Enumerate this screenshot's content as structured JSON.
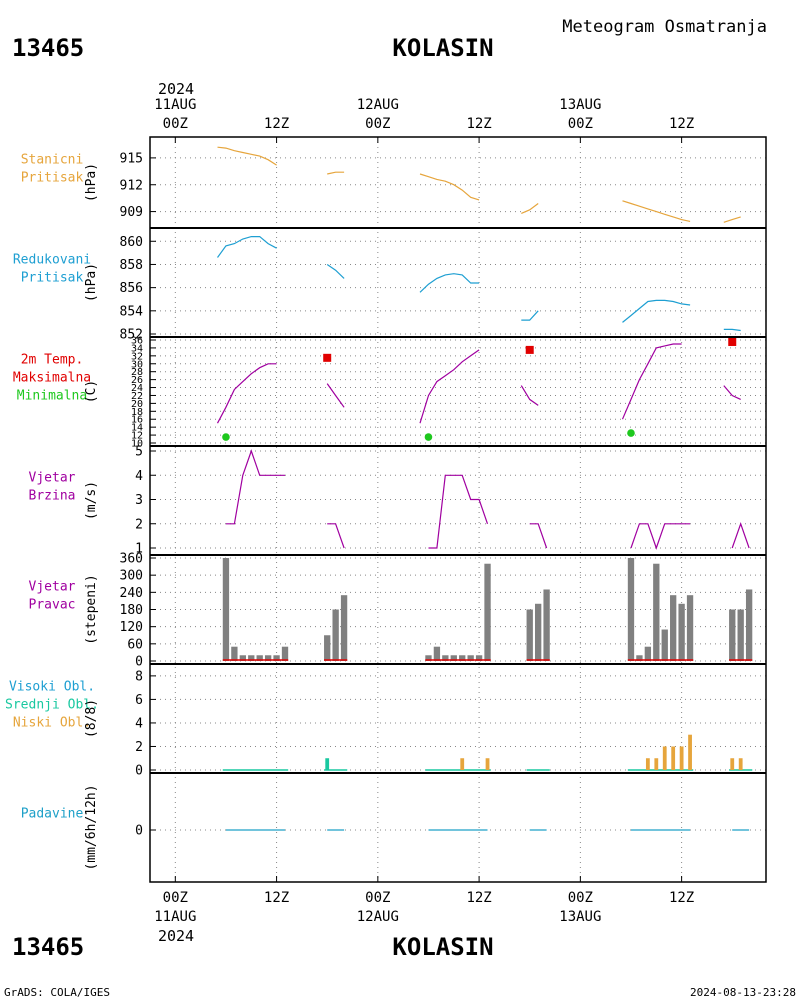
{
  "header": {
    "station_id": "13465",
    "station_name": "KOLASIN",
    "subtitle": "Meteogram Osmatranja",
    "year": "2024",
    "footer_left": "GrADS: COLA/IGES",
    "footer_right": "2024-08-13-23:28"
  },
  "time_axis": {
    "ticks": [
      {
        "hour": 0,
        "label": "00Z",
        "date": "11AUG"
      },
      {
        "hour": 12,
        "label": "12Z",
        "date": ""
      },
      {
        "hour": 24,
        "label": "00Z",
        "date": "12AUG"
      },
      {
        "hour": 36,
        "label": "12Z",
        "date": ""
      },
      {
        "hour": 48,
        "label": "00Z",
        "date": "13AUG"
      },
      {
        "hour": 60,
        "label": "12Z",
        "date": ""
      }
    ],
    "range_hours": [
      -3,
      70
    ]
  },
  "colors": {
    "pressure": "#e6a53c",
    "reduced": "#1e9fd2",
    "temperature": "#a000a0",
    "tmax": "#e10000",
    "tmin": "#1ec81e",
    "wind": "#a000a0",
    "direction_bar": "#808080",
    "direction_base": "#e10000",
    "cloud_high": "#1e9fd2",
    "cloud_mid": "#19c8a0",
    "cloud_low": "#e6a53c",
    "precip": "#1ea0c8"
  },
  "panels": [
    {
      "key": "pressure",
      "labels": [
        {
          "text": "Stanicni",
          "color": "#e6a53c"
        },
        {
          "text": "Pritisak",
          "color": "#e6a53c"
        }
      ],
      "unit": "(hPa)",
      "ticks": [
        "909",
        "912",
        "915"
      ]
    },
    {
      "key": "reduced",
      "labels": [
        {
          "text": "Redukovani",
          "color": "#1e9fd2"
        },
        {
          "text": "Pritisak",
          "color": "#1e9fd2"
        }
      ],
      "unit": "(hPa)",
      "ticks": [
        "852",
        "854",
        "856",
        "858",
        "860"
      ]
    },
    {
      "key": "temperature",
      "labels": [
        {
          "text": "2m Temp.",
          "color": "#e10000"
        },
        {
          "text": "Maksimalna",
          "color": "#e10000"
        },
        {
          "text": "Minimalna",
          "color": "#1ec81e"
        }
      ],
      "unit": "(C)",
      "ticks": [
        "10",
        "12",
        "14",
        "16",
        "18",
        "20",
        "22",
        "24",
        "26",
        "28",
        "30",
        "32",
        "34",
        "36"
      ]
    },
    {
      "key": "wind",
      "labels": [
        {
          "text": "Vjetar",
          "color": "#a000a0"
        },
        {
          "text": "Brzina",
          "color": "#a000a0"
        }
      ],
      "unit": "(m/s)",
      "ticks": [
        "1",
        "2",
        "3",
        "4",
        "5"
      ]
    },
    {
      "key": "direction",
      "labels": [
        {
          "text": "Vjetar",
          "color": "#a000a0"
        },
        {
          "text": "Pravac",
          "color": "#a000a0"
        }
      ],
      "unit": "(stepeni)",
      "ticks": [
        "0",
        "60",
        "120",
        "180",
        "240",
        "300",
        "360"
      ]
    },
    {
      "key": "clouds",
      "labels": [
        {
          "text": "Visoki Obl.",
          "color": "#1e9fd2"
        },
        {
          "text": "Srednji Obl.",
          "color": "#19c8a0"
        },
        {
          "text": "Niski Obl.",
          "color": "#e6a53c"
        }
      ],
      "unit": "(8/8)",
      "ticks": [
        "0",
        "2",
        "4",
        "6",
        "8"
      ]
    },
    {
      "key": "precip",
      "labels": [
        {
          "text": "Padavine",
          "color": "#1ea0c8"
        }
      ],
      "unit": "(mm/6h/12h)",
      "ticks": [
        "0"
      ]
    }
  ],
  "chart_data": [
    {
      "type": "line",
      "title": "Stanicni Pritisak",
      "ylabel": "(hPa)",
      "ylim": [
        907.5,
        917
      ],
      "series": [
        {
          "segments": [
            {
              "x": [
                5,
                6,
                7,
                8,
                9,
                10,
                11,
                12
              ],
              "y": [
                916.2,
                916.1,
                915.8,
                915.6,
                915.4,
                915.2,
                914.8,
                914.2
              ]
            },
            {
              "x": [
                18,
                19,
                20
              ],
              "y": [
                913.2,
                913.4,
                913.4
              ]
            },
            {
              "x": [
                29,
                30,
                31,
                32,
                33,
                34,
                35,
                36
              ],
              "y": [
                913.2,
                912.9,
                912.6,
                912.4,
                912.0,
                911.4,
                910.6,
                910.3
              ]
            },
            {
              "x": [
                41,
                42,
                43
              ],
              "y": [
                908.8,
                909.2,
                909.9
              ]
            },
            {
              "x": [
                53,
                54,
                55,
                56,
                57,
                58,
                59,
                60,
                61
              ],
              "y": [
                910.2,
                909.9,
                909.6,
                909.3,
                909.0,
                908.7,
                908.4,
                908.1,
                907.9
              ]
            },
            {
              "x": [
                65,
                66,
                67
              ],
              "y": [
                907.8,
                908.1,
                908.4
              ]
            }
          ]
        }
      ]
    },
    {
      "type": "line",
      "title": "Redukovani Pritisak",
      "ylabel": "(hPa)",
      "ylim": [
        852,
        860.8
      ],
      "series": [
        {
          "segments": [
            {
              "x": [
                5,
                6,
                7,
                8,
                9,
                10,
                11,
                12
              ],
              "y": [
                858.6,
                859.6,
                859.8,
                860.2,
                860.4,
                860.4,
                859.8,
                859.4
              ]
            },
            {
              "x": [
                18,
                19,
                20
              ],
              "y": [
                858.0,
                857.5,
                856.8
              ]
            },
            {
              "x": [
                29,
                30,
                31,
                32,
                33,
                34,
                35,
                36
              ],
              "y": [
                855.6,
                856.3,
                856.8,
                857.1,
                857.2,
                857.1,
                856.4,
                856.4
              ]
            },
            {
              "x": [
                41,
                42,
                43
              ],
              "y": [
                853.2,
                853.2,
                854.0
              ]
            },
            {
              "x": [
                53,
                54,
                55,
                56,
                57,
                58,
                59,
                60,
                61
              ],
              "y": [
                853.0,
                853.6,
                854.2,
                854.8,
                854.9,
                854.9,
                854.8,
                854.6,
                854.5
              ]
            },
            {
              "x": [
                65,
                66,
                67
              ],
              "y": [
                852.4,
                852.4,
                852.3
              ]
            }
          ]
        }
      ]
    },
    {
      "type": "line",
      "title": "2m Temp. Maksimalna Minimalna",
      "ylabel": "(C)",
      "ylim": [
        10,
        36
      ],
      "series": [
        {
          "name": "2m Temp.",
          "segments": [
            {
              "x": [
                5,
                6,
                7,
                8,
                9,
                10,
                11,
                12
              ],
              "y": [
                15.0,
                19.0,
                23.5,
                25.5,
                27.5,
                29.0,
                30.0,
                30.0
              ]
            },
            {
              "x": [
                18,
                19,
                20
              ],
              "y": [
                25.0,
                22.0,
                19.0
              ]
            },
            {
              "x": [
                29,
                30,
                31,
                32,
                33,
                34,
                35,
                36
              ],
              "y": [
                15.0,
                22.0,
                25.5,
                27.0,
                28.5,
                30.5,
                32.0,
                33.5
              ]
            },
            {
              "x": [
                41,
                42,
                43
              ],
              "y": [
                24.5,
                21.0,
                19.5
              ]
            },
            {
              "x": [
                53,
                54,
                55,
                56,
                57,
                58,
                59,
                60
              ],
              "y": [
                16.0,
                21.0,
                26.0,
                30.0,
                34.0,
                34.5,
                35.0,
                35.0
              ]
            },
            {
              "x": [
                65,
                66,
                67
              ],
              "y": [
                24.5,
                22.0,
                21.0
              ]
            }
          ]
        },
        {
          "name": "Maksimalna",
          "points": [
            {
              "x": 18,
              "y": 31.5
            },
            {
              "x": 42,
              "y": 33.5
            },
            {
              "x": 66,
              "y": 35.5
            }
          ]
        },
        {
          "name": "Minimalna",
          "points": [
            {
              "x": 6,
              "y": 11.5
            },
            {
              "x": 30,
              "y": 11.5
            },
            {
              "x": 54,
              "y": 12.5
            }
          ]
        }
      ]
    },
    {
      "type": "line",
      "title": "Vjetar Brzina",
      "ylabel": "(m/s)",
      "ylim": [
        1,
        5
      ],
      "series": [
        {
          "segments": [
            {
              "x": [
                6,
                7,
                8,
                9,
                10,
                11,
                12,
                13
              ],
              "y": [
                2,
                2,
                4,
                5,
                4,
                4,
                4,
                4
              ]
            },
            {
              "x": [
                18,
                19,
                20
              ],
              "y": [
                2,
                2,
                1
              ]
            },
            {
              "x": [
                30,
                31,
                32,
                33,
                34,
                35,
                36,
                37
              ],
              "y": [
                1,
                1,
                4,
                4,
                4,
                3,
                3,
                2
              ]
            },
            {
              "x": [
                42,
                43,
                44
              ],
              "y": [
                2,
                2,
                1
              ]
            },
            {
              "x": [
                54,
                55,
                56,
                57,
                58,
                59,
                60,
                61
              ],
              "y": [
                1,
                2,
                2,
                1,
                2,
                2,
                2,
                2
              ]
            },
            {
              "x": [
                66,
                67,
                68
              ],
              "y": [
                1,
                2,
                1
              ]
            }
          ]
        }
      ]
    },
    {
      "type": "bar",
      "title": "Vjetar Pravac",
      "ylabel": "(stepeni)",
      "ylim": [
        0,
        360
      ],
      "x": [
        6,
        7,
        8,
        9,
        10,
        11,
        12,
        13,
        18,
        19,
        20,
        30,
        31,
        32,
        33,
        34,
        35,
        36,
        37,
        42,
        43,
        44,
        54,
        55,
        56,
        57,
        58,
        59,
        60,
        61,
        66,
        67,
        68
      ],
      "values": [
        360,
        50,
        20,
        20,
        20,
        20,
        20,
        50,
        90,
        180,
        230,
        20,
        50,
        20,
        20,
        20,
        20,
        20,
        340,
        180,
        200,
        250,
        360,
        20,
        50,
        340,
        110,
        230,
        200,
        230,
        180,
        180,
        250
      ]
    },
    {
      "type": "bar",
      "title": "Visoki Obl. Srednji Obl. Niski Obl.",
      "ylabel": "(8/8)",
      "ylim": [
        0,
        8.5
      ],
      "series": [
        {
          "name": "Srednji Obl.",
          "x": [
            18
          ],
          "values": [
            1
          ]
        },
        {
          "name": "Niski Obl.",
          "x": [
            34,
            37,
            56,
            57,
            58,
            59,
            60,
            61,
            66,
            67
          ],
          "values": [
            1,
            1,
            1,
            1,
            2,
            2,
            2,
            3,
            1,
            1
          ]
        }
      ]
    },
    {
      "type": "line",
      "title": "Padavine",
      "ylabel": "(mm/6h/12h)",
      "ylim": [
        -1,
        1
      ],
      "series": [
        {
          "segments": [
            {
              "x": [
                6,
                13
              ],
              "y": [
                0,
                0
              ]
            },
            {
              "x": [
                18,
                20
              ],
              "y": [
                0,
                0
              ]
            },
            {
              "x": [
                30,
                37
              ],
              "y": [
                0,
                0
              ]
            },
            {
              "x": [
                42,
                44
              ],
              "y": [
                0,
                0
              ]
            },
            {
              "x": [
                54,
                61
              ],
              "y": [
                0,
                0
              ]
            },
            {
              "x": [
                66,
                68
              ],
              "y": [
                0,
                0
              ]
            }
          ]
        }
      ]
    }
  ]
}
